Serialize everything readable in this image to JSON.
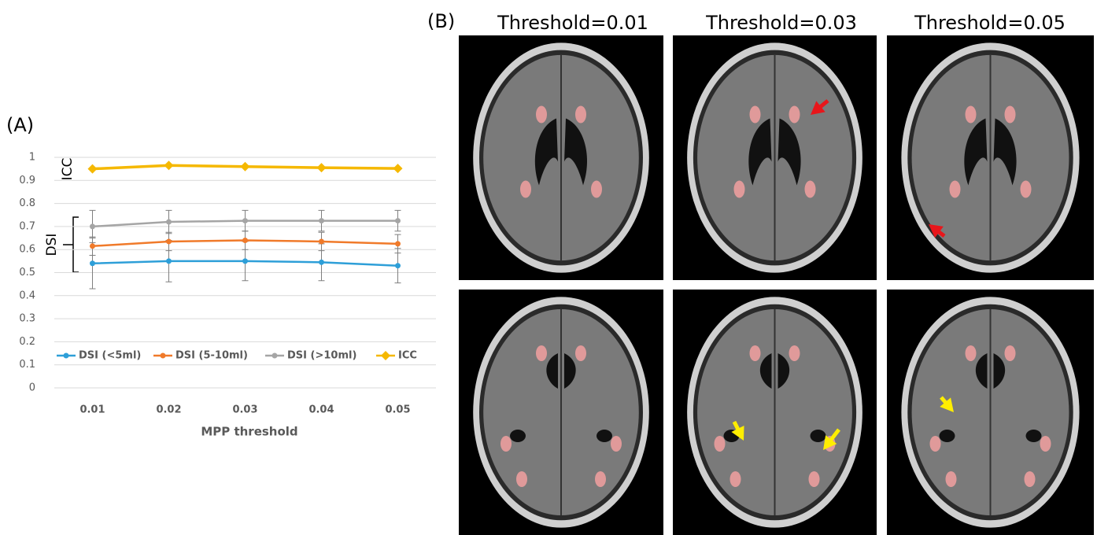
{
  "panel_a": {
    "label": "(A)"
  },
  "panel_b": {
    "label": "(B)",
    "columns": [
      "Threshold=0.01",
      "Threshold=0.03",
      "Threshold=0.05"
    ]
  },
  "chart_data": {
    "type": "line",
    "x_label": "MPP threshold",
    "annotations": [
      "ICC",
      "DSI"
    ],
    "categories": [
      "0.01",
      "0.02",
      "0.03",
      "0.04",
      "0.05"
    ],
    "ylim": [
      0,
      1
    ],
    "yticks": [
      0,
      0.1,
      0.2,
      0.3,
      0.4,
      0.5,
      0.6,
      0.7,
      0.8,
      0.9,
      1
    ],
    "grid": true,
    "legend": "bottom",
    "series": [
      {
        "name": "DSI (<5ml)",
        "color": "#2e9fd8",
        "marker": "circle",
        "values": [
          0.54,
          0.55,
          0.55,
          0.545,
          0.53
        ],
        "errors": [
          0.11,
          0.09,
          0.085,
          0.08,
          0.075
        ]
      },
      {
        "name": "DSI (5-10ml)",
        "color": "#f07a2a",
        "marker": "circle",
        "values": [
          0.615,
          0.635,
          0.64,
          0.635,
          0.625
        ],
        "errors": [
          0.04,
          0.04,
          0.04,
          0.04,
          0.04
        ]
      },
      {
        "name": "DSI (>10ml)",
        "color": "#a5a5a5",
        "marker": "circle",
        "values": [
          0.7,
          0.72,
          0.725,
          0.725,
          0.725
        ],
        "errors": [
          0.07,
          0.05,
          0.045,
          0.045,
          0.045
        ]
      },
      {
        "name": "ICC",
        "color": "#f5b800",
        "marker": "diamond",
        "values": [
          0.95,
          0.965,
          0.96,
          0.955,
          0.952
        ]
      }
    ]
  }
}
